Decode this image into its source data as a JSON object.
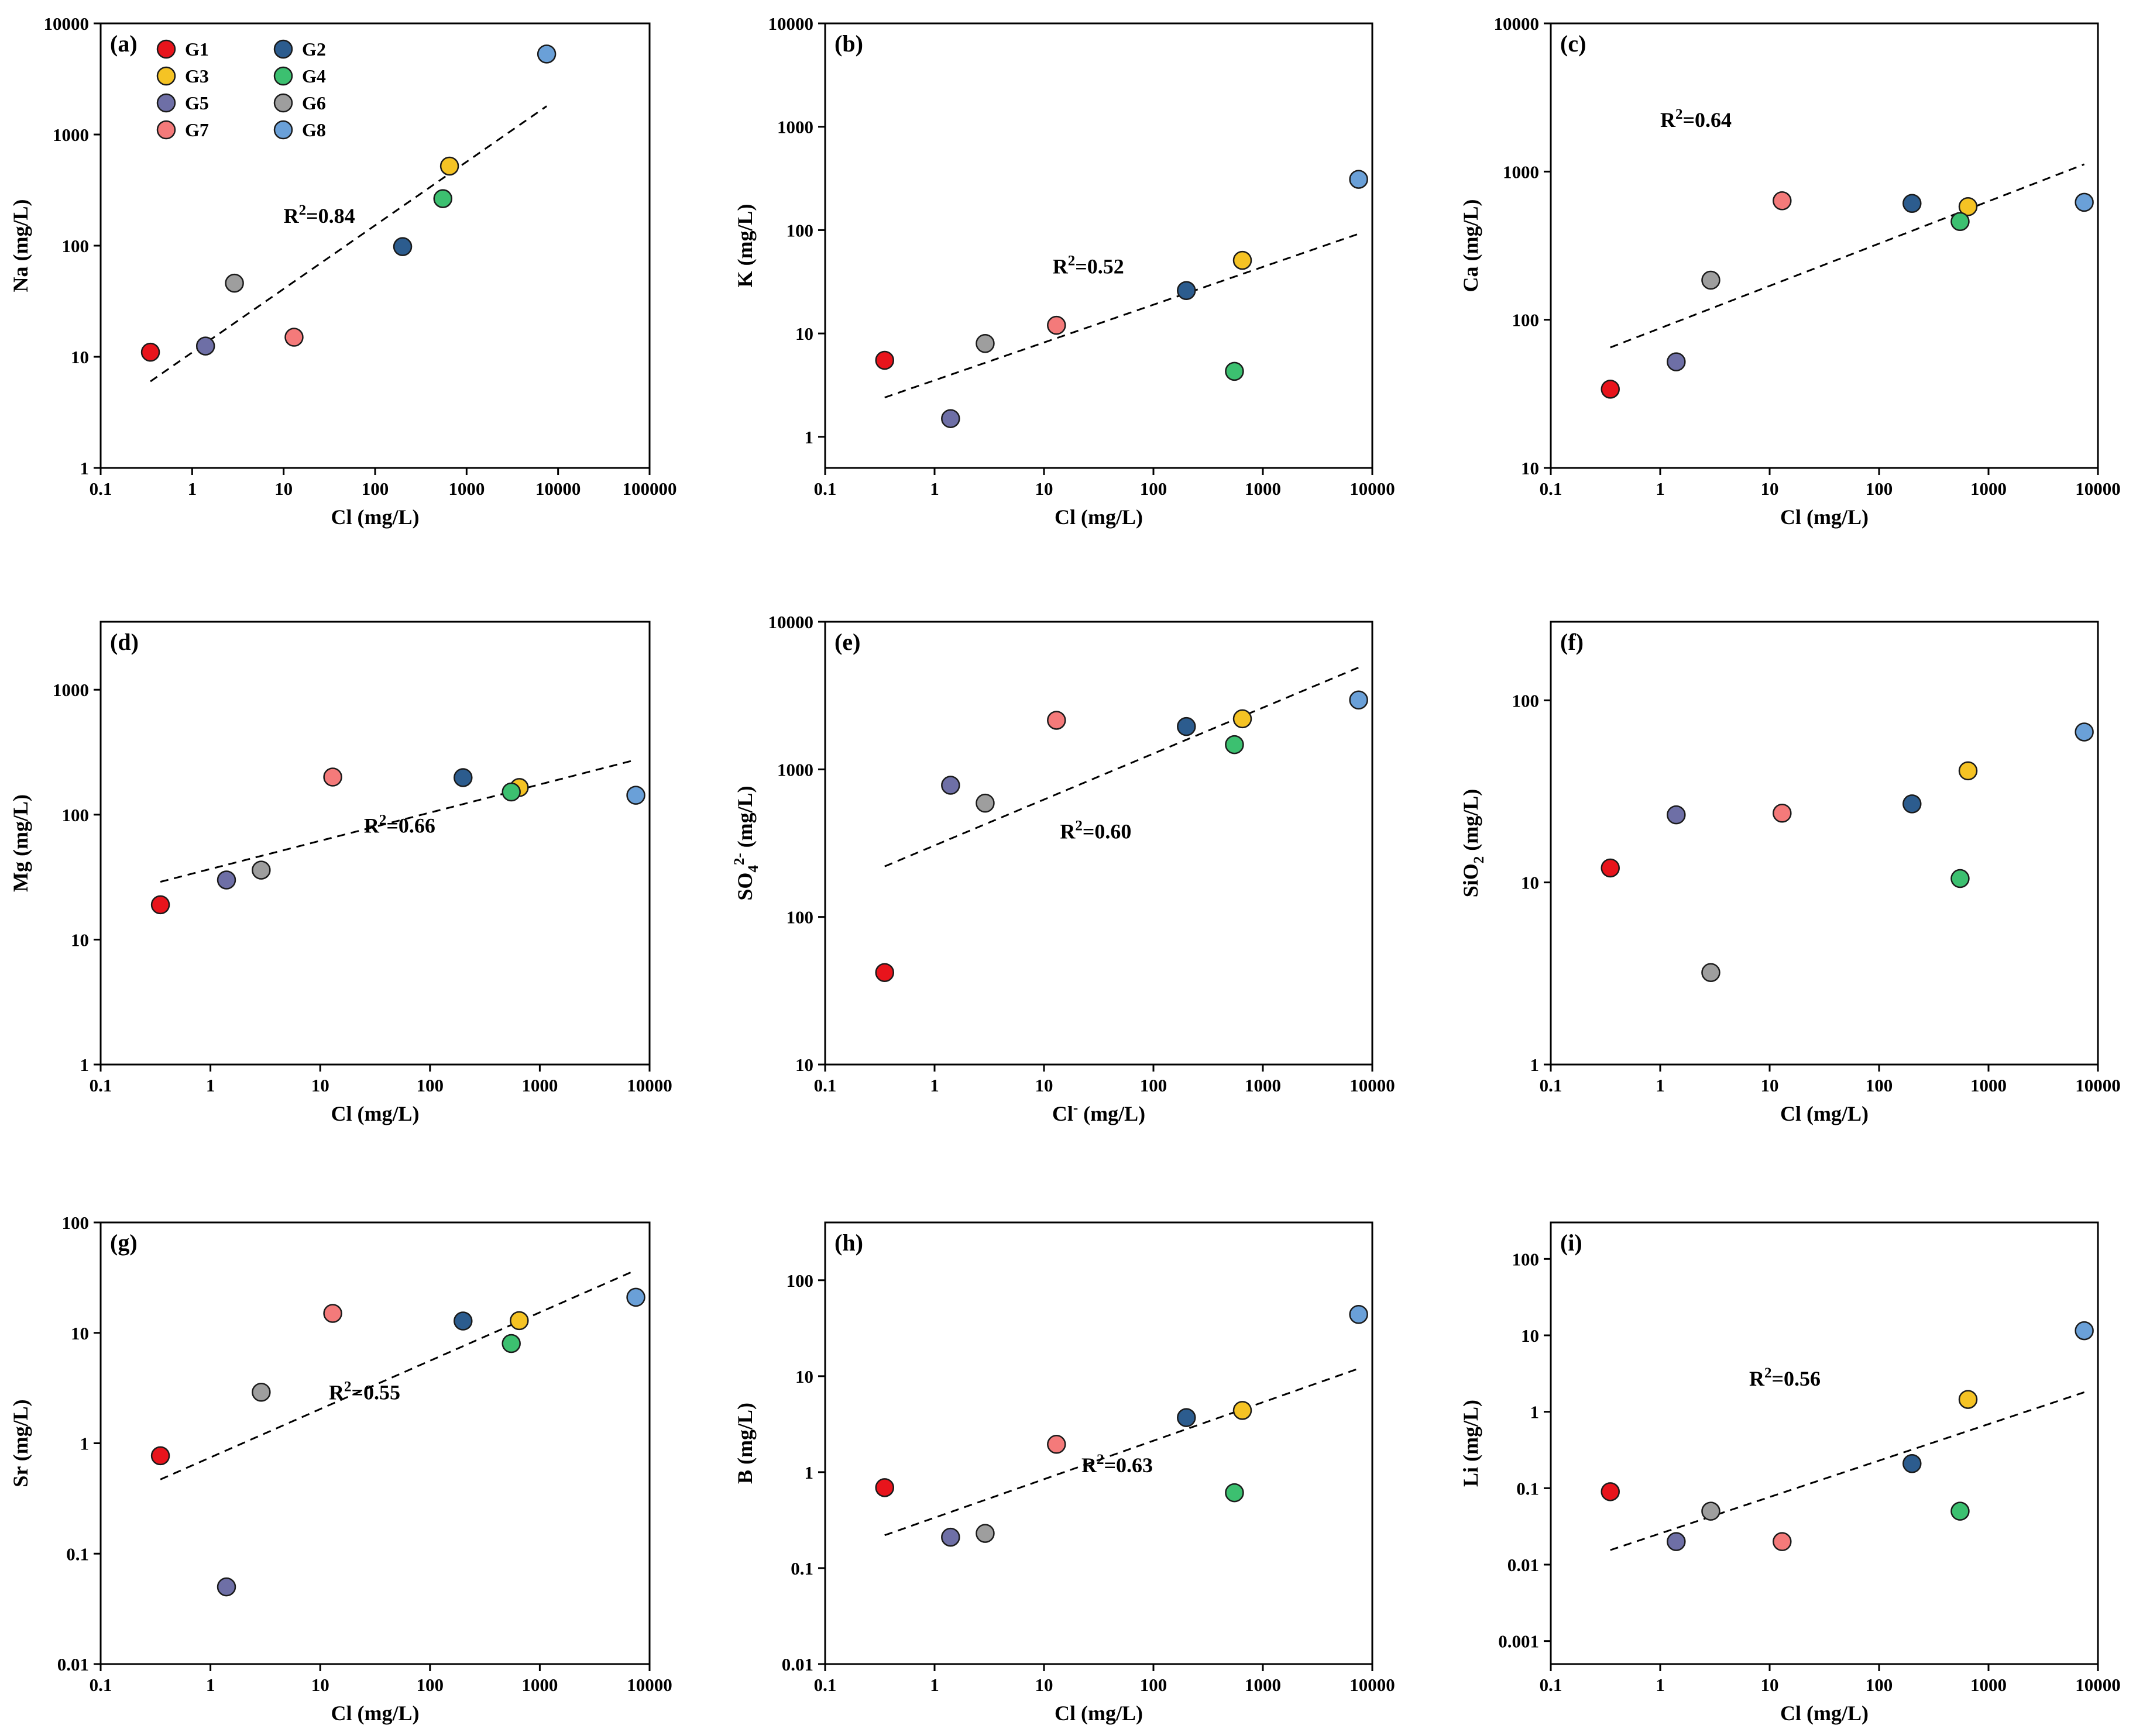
{
  "chart_data": [
    {
      "type": "scatter",
      "panel": "(a)",
      "xlabel": "Cl (mg/L)",
      "xlabel_sup": "",
      "xlabel_tail": "",
      "ylabel": "Na (mg/L)",
      "ylabel_sub": "",
      "ylabel_sup": "",
      "ylabel_tail": "",
      "xscale": "log",
      "yscale": "log",
      "xlim": [
        0.1,
        100000
      ],
      "ylim": [
        1,
        10000
      ],
      "xticks": [
        "0.1",
        "1",
        "10",
        "100",
        "1000",
        "10000",
        "100000"
      ],
      "yticks": [
        "1",
        "10",
        "100",
        "1000",
        "10000"
      ],
      "points": [
        {
          "group": "G1",
          "x": 0.35,
          "y": 11
        },
        {
          "group": "G2",
          "x": 200,
          "y": 98
        },
        {
          "group": "G3",
          "x": 650,
          "y": 520
        },
        {
          "group": "G4",
          "x": 550,
          "y": 265
        },
        {
          "group": "G5",
          "x": 1.4,
          "y": 12.5
        },
        {
          "group": "G6",
          "x": 2.9,
          "y": 46
        },
        {
          "group": "G7",
          "x": 13,
          "y": 15
        },
        {
          "group": "G8",
          "x": 7500,
          "y": 5300
        }
      ],
      "fit": {
        "x": [
          0.35,
          7500
        ],
        "y": [
          6,
          1800
        ]
      },
      "r2_text": "R",
      "r2_sup": "2",
      "r2_value": "=0.84",
      "r2_pos": [
        10,
        160
      ]
    },
    {
      "type": "scatter",
      "panel": "(b)",
      "xlabel": "Cl (mg/L)",
      "xlabel_sup": "",
      "xlabel_tail": "",
      "ylabel": "K (mg/L)",
      "ylabel_sub": "",
      "ylabel_sup": "",
      "ylabel_tail": "",
      "xscale": "log",
      "yscale": "log",
      "xlim": [
        0.1,
        10000
      ],
      "ylim": [
        0.5,
        10000
      ],
      "xticks": [
        "0.1",
        "1",
        "10",
        "100",
        "1000",
        "10000"
      ],
      "yticks": [
        "1",
        "10",
        "100",
        "1000",
        "10000"
      ],
      "points": [
        {
          "group": "G1",
          "x": 0.35,
          "y": 5.5
        },
        {
          "group": "G2",
          "x": 200,
          "y": 26
        },
        {
          "group": "G3",
          "x": 650,
          "y": 51
        },
        {
          "group": "G4",
          "x": 550,
          "y": 4.3
        },
        {
          "group": "G5",
          "x": 1.4,
          "y": 1.5
        },
        {
          "group": "G6",
          "x": 2.9,
          "y": 8
        },
        {
          "group": "G7",
          "x": 13,
          "y": 12
        },
        {
          "group": "G8",
          "x": 7500,
          "y": 310
        }
      ],
      "fit": {
        "x": [
          0.35,
          7500
        ],
        "y": [
          2.4,
          92
        ]
      },
      "r2_text": "R",
      "r2_sup": "2",
      "r2_value": "=0.52",
      "r2_pos": [
        12,
        38
      ]
    },
    {
      "type": "scatter",
      "panel": "(c)",
      "xlabel": "Cl (mg/L)",
      "xlabel_sup": "",
      "xlabel_tail": "",
      "ylabel": "Ca (mg/L)",
      "ylabel_sub": "",
      "ylabel_sup": "",
      "ylabel_tail": "",
      "xscale": "log",
      "yscale": "log",
      "xlim": [
        0.1,
        10000
      ],
      "ylim": [
        10,
        10000
      ],
      "xticks": [
        "0.1",
        "1",
        "10",
        "100",
        "1000",
        "10000"
      ],
      "yticks": [
        "10",
        "100",
        "1000",
        "10000"
      ],
      "points": [
        {
          "group": "G1",
          "x": 0.35,
          "y": 34
        },
        {
          "group": "G2",
          "x": 200,
          "y": 610
        },
        {
          "group": "G3",
          "x": 650,
          "y": 580
        },
        {
          "group": "G4",
          "x": 550,
          "y": 460
        },
        {
          "group": "G5",
          "x": 1.4,
          "y": 52
        },
        {
          "group": "G6",
          "x": 2.9,
          "y": 185
        },
        {
          "group": "G7",
          "x": 13,
          "y": 635
        },
        {
          "group": "G8",
          "x": 7500,
          "y": 620
        }
      ],
      "fit": {
        "x": [
          0.35,
          7500
        ],
        "y": [
          65,
          1120
        ]
      },
      "r2_text": "R",
      "r2_sup": "2",
      "r2_value": "=0.64",
      "r2_pos": [
        1,
        2000
      ]
    },
    {
      "type": "scatter",
      "panel": "(d)",
      "xlabel": "Cl (mg/L)",
      "xlabel_sup": "",
      "xlabel_tail": "",
      "ylabel": "Mg (mg/L)",
      "ylabel_sub": "",
      "ylabel_sup": "",
      "ylabel_tail": "",
      "xscale": "log",
      "yscale": "log",
      "xlim": [
        0.1,
        10000
      ],
      "ylim": [
        1,
        3500
      ],
      "xticks": [
        "0.1",
        "1",
        "10",
        "100",
        "1000",
        "10000"
      ],
      "yticks": [
        "1",
        "10",
        "100",
        "1000"
      ],
      "points": [
        {
          "group": "G1",
          "x": 0.35,
          "y": 19
        },
        {
          "group": "G2",
          "x": 200,
          "y": 198
        },
        {
          "group": "G3",
          "x": 650,
          "y": 165
        },
        {
          "group": "G4",
          "x": 550,
          "y": 152
        },
        {
          "group": "G5",
          "x": 1.4,
          "y": 30
        },
        {
          "group": "G6",
          "x": 2.9,
          "y": 36
        },
        {
          "group": "G7",
          "x": 13,
          "y": 200
        },
        {
          "group": "G8",
          "x": 7500,
          "y": 143
        }
      ],
      "fit": {
        "x": [
          0.35,
          7500
        ],
        "y": [
          29,
          275
        ]
      },
      "r2_text": "R",
      "r2_sup": "2",
      "r2_value": "=0.66",
      "r2_pos": [
        25,
        72
      ]
    },
    {
      "type": "scatter",
      "panel": "(e)",
      "xlabel": "Cl",
      "xlabel_sup": "-",
      "xlabel_tail": " (mg/L)",
      "ylabel": "SO",
      "ylabel_sub": "4",
      "ylabel_sup": "2-",
      "ylabel_tail": " (mg/L)",
      "xscale": "log",
      "yscale": "log",
      "xlim": [
        0.1,
        10000
      ],
      "ylim": [
        10,
        10000
      ],
      "xticks": [
        "0.1",
        "1",
        "10",
        "100",
        "1000",
        "10000"
      ],
      "yticks": [
        "10",
        "100",
        "1000",
        "10000"
      ],
      "points": [
        {
          "group": "G1",
          "x": 0.35,
          "y": 42
        },
        {
          "group": "G2",
          "x": 200,
          "y": 1950
        },
        {
          "group": "G3",
          "x": 650,
          "y": 2200
        },
        {
          "group": "G4",
          "x": 550,
          "y": 1470
        },
        {
          "group": "G5",
          "x": 1.4,
          "y": 780
        },
        {
          "group": "G6",
          "x": 2.9,
          "y": 590
        },
        {
          "group": "G7",
          "x": 13,
          "y": 2150
        },
        {
          "group": "G8",
          "x": 7500,
          "y": 2950
        }
      ],
      "fit": {
        "x": [
          0.35,
          7500
        ],
        "y": [
          220,
          4900
        ]
      },
      "r2_text": "R",
      "r2_sup": "2",
      "r2_value": "=0.60",
      "r2_pos": [
        14,
        340
      ]
    },
    {
      "type": "scatter",
      "panel": "(f)",
      "xlabel": "Cl (mg/L)",
      "xlabel_sup": "",
      "xlabel_tail": "",
      "ylabel": "SiO",
      "ylabel_sub": "2",
      "ylabel_sup": "",
      "ylabel_tail": " (mg/L)",
      "xscale": "log",
      "yscale": "log",
      "xlim": [
        0.1,
        10000
      ],
      "ylim": [
        1,
        270
      ],
      "xticks": [
        "0.1",
        "1",
        "10",
        "100",
        "1000",
        "10000"
      ],
      "yticks": [
        "1",
        "10",
        "100"
      ],
      "points": [
        {
          "group": "G1",
          "x": 0.35,
          "y": 12
        },
        {
          "group": "G2",
          "x": 200,
          "y": 27
        },
        {
          "group": "G3",
          "x": 650,
          "y": 41
        },
        {
          "group": "G4",
          "x": 550,
          "y": 10.5
        },
        {
          "group": "G5",
          "x": 1.4,
          "y": 23.5
        },
        {
          "group": "G6",
          "x": 2.9,
          "y": 3.2
        },
        {
          "group": "G7",
          "x": 13,
          "y": 24
        },
        {
          "group": "G8",
          "x": 7500,
          "y": 67
        }
      ]
    },
    {
      "type": "scatter",
      "panel": "(g)",
      "xlabel": "Cl (mg/L)",
      "xlabel_sup": "",
      "xlabel_tail": "",
      "ylabel": "Sr (mg/L)",
      "ylabel_sub": "",
      "ylabel_sup": "",
      "ylabel_tail": "",
      "xscale": "log",
      "yscale": "log",
      "xlim": [
        0.1,
        10000
      ],
      "ylim": [
        0.01,
        100
      ],
      "xticks": [
        "0.1",
        "1",
        "10",
        "100",
        "1000",
        "10000"
      ],
      "yticks": [
        "0.01",
        "0.1",
        "1",
        "10",
        "100"
      ],
      "points": [
        {
          "group": "G1",
          "x": 0.35,
          "y": 0.77
        },
        {
          "group": "G2",
          "x": 200,
          "y": 12.8
        },
        {
          "group": "G3",
          "x": 650,
          "y": 12.9
        },
        {
          "group": "G4",
          "x": 550,
          "y": 8
        },
        {
          "group": "G5",
          "x": 1.4,
          "y": 0.05
        },
        {
          "group": "G6",
          "x": 2.9,
          "y": 2.9
        },
        {
          "group": "G7",
          "x": 13,
          "y": 15
        },
        {
          "group": "G8",
          "x": 7500,
          "y": 21
        }
      ],
      "fit": {
        "x": [
          0.35,
          7500
        ],
        "y": [
          0.47,
          37
        ]
      },
      "r2_text": "R",
      "r2_sup": "2",
      "r2_value": "=0.55",
      "r2_pos": [
        12,
        2.5
      ]
    },
    {
      "type": "scatter",
      "panel": "(h)",
      "xlabel": "Cl (mg/L)",
      "xlabel_sup": "",
      "xlabel_tail": "",
      "ylabel": "B (mg/L)",
      "ylabel_sub": "",
      "ylabel_sup": "",
      "ylabel_tail": "",
      "xscale": "log",
      "yscale": "log",
      "xlim": [
        0.1,
        10000
      ],
      "ylim": [
        0.01,
        400
      ],
      "xticks": [
        "0.1",
        "1",
        "10",
        "100",
        "1000",
        "10000"
      ],
      "yticks": [
        "0.01",
        "0.1",
        "1",
        "10",
        "100"
      ],
      "points": [
        {
          "group": "G1",
          "x": 0.35,
          "y": 0.69
        },
        {
          "group": "G2",
          "x": 200,
          "y": 3.7
        },
        {
          "group": "G3",
          "x": 650,
          "y": 4.4
        },
        {
          "group": "G4",
          "x": 550,
          "y": 0.61
        },
        {
          "group": "G5",
          "x": 1.4,
          "y": 0.21
        },
        {
          "group": "G6",
          "x": 2.9,
          "y": 0.23
        },
        {
          "group": "G7",
          "x": 13,
          "y": 1.95
        },
        {
          "group": "G8",
          "x": 7500,
          "y": 44
        }
      ],
      "fit": {
        "x": [
          0.35,
          7500
        ],
        "y": [
          0.22,
          12
        ]
      },
      "r2_text": "R",
      "r2_sup": "2",
      "r2_value": "=0.63",
      "r2_pos": [
        22,
        1.0
      ]
    },
    {
      "type": "scatter",
      "panel": "(i)",
      "xlabel": "Cl (mg/L)",
      "xlabel_sup": "",
      "xlabel_tail": "",
      "ylabel": "Li (mg/L)",
      "ylabel_sub": "",
      "ylabel_sup": "",
      "ylabel_tail": "",
      "xscale": "log",
      "yscale": "log",
      "xlim": [
        0.1,
        10000
      ],
      "ylim": [
        0.0005,
        300
      ],
      "xticks": [
        "0.1",
        "1",
        "10",
        "100",
        "1000",
        "10000"
      ],
      "yticks": [
        "0.001",
        "0.01",
        "0.1",
        "1",
        "10",
        "100"
      ],
      "points": [
        {
          "group": "G1",
          "x": 0.35,
          "y": 0.09
        },
        {
          "group": "G2",
          "x": 200,
          "y": 0.21
        },
        {
          "group": "G3",
          "x": 650,
          "y": 1.45
        },
        {
          "group": "G4",
          "x": 550,
          "y": 0.05
        },
        {
          "group": "G5",
          "x": 1.4,
          "y": 0.02
        },
        {
          "group": "G6",
          "x": 2.9,
          "y": 0.05
        },
        {
          "group": "G7",
          "x": 13,
          "y": 0.02
        },
        {
          "group": "G8",
          "x": 7500,
          "y": 11.5
        }
      ],
      "fit": {
        "x": [
          0.35,
          7500
        ],
        "y": [
          0.0155,
          1.8
        ]
      },
      "r2_text": "R",
      "r2_sup": "2",
      "r2_value": "=0.56",
      "r2_pos": [
        6.5,
        2.2
      ]
    }
  ],
  "legend": [
    {
      "name": "G1",
      "color": "#e8141c"
    },
    {
      "name": "G2",
      "color": "#2c5c8e"
    },
    {
      "name": "G3",
      "color": "#f5c324"
    },
    {
      "name": "G4",
      "color": "#3cc070"
    },
    {
      "name": "G5",
      "color": "#6e6fa6"
    },
    {
      "name": "G6",
      "color": "#9e9e9e"
    },
    {
      "name": "G7",
      "color": "#f47a7a"
    },
    {
      "name": "G8",
      "color": "#6aa0d8"
    }
  ]
}
